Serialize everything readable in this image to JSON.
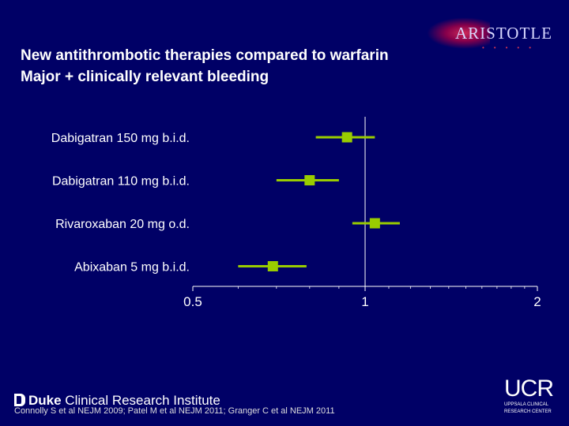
{
  "slide": {
    "title_line1": "New antithrombotic therapies compared to warfarin",
    "title_line2": "Major + clinically relevant bleeding"
  },
  "logo": {
    "text": "ARISTOTLE"
  },
  "footer": {
    "institute_bold": "Duke",
    "institute_rest": " Clinical Research Institute",
    "citation": "Connolly S et al NEJM 2009; Patel M et al NEJM 2011; Granger C et al NEJM 2011",
    "ucr_big": "UCR",
    "ucr_line1": "UPPSALA CLINICAL",
    "ucr_line2": "RESEARCH CENTER"
  },
  "colors": {
    "background": "#000066",
    "marker": "#99cc00",
    "axis": "#ffffff"
  },
  "chart_data": {
    "type": "forest",
    "title": "",
    "xlabel": "",
    "ylabel": "",
    "x_scale": "log",
    "xlim": [
      0.5,
      2
    ],
    "x_tick_labels": [
      "0.5",
      "1",
      "2"
    ],
    "x_ticks": [
      0.5,
      1,
      2
    ],
    "reference_line": 1,
    "grid": false,
    "categories": [
      "Dabigatran 150 mg b.i.d.",
      "Dabigatran 110 mg b.i.d.",
      "Rivaroxaban 20 mg o.d.",
      "Abixaban  5 mg b.i.d."
    ],
    "estimates": [
      0.93,
      0.8,
      1.04,
      0.69
    ],
    "ci_low": [
      0.82,
      0.7,
      0.95,
      0.6
    ],
    "ci_high": [
      1.04,
      0.9,
      1.15,
      0.79
    ]
  }
}
